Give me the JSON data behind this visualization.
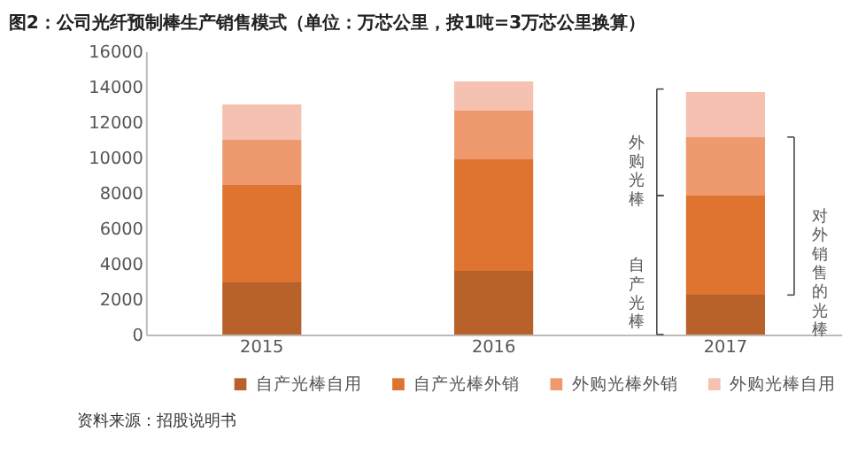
{
  "chart_data": {
    "type": "bar",
    "stacked": true,
    "title": "图2：公司光纤预制棒生产销售模式（单位：万芯公里，按1吨=3万芯公里换算）",
    "categories": [
      "2015",
      "2016",
      "2017"
    ],
    "series": [
      {
        "name": "自产光棒自用",
        "color": "#b8612a",
        "values": [
          2950,
          3600,
          2250
        ]
      },
      {
        "name": "自产光棒外销",
        "color": "#de7430",
        "values": [
          5500,
          6300,
          5600
        ]
      },
      {
        "name": "外购光棒外销",
        "color": "#ee9a6e",
        "values": [
          2550,
          2750,
          3300
        ]
      },
      {
        "name": "外购光棒自用",
        "color": "#f5c1b0",
        "values": [
          2000,
          1650,
          2550
        ]
      }
    ],
    "ylim": [
      0,
      16000
    ],
    "yticks": [
      0,
      2000,
      4000,
      6000,
      8000,
      10000,
      12000,
      14000,
      16000
    ],
    "grid": false,
    "legend": "bottom",
    "annotations": [
      "外购光棒",
      "自产光棒",
      "对外销售的光棒",
      "资料来源：招股说明书"
    ]
  }
}
